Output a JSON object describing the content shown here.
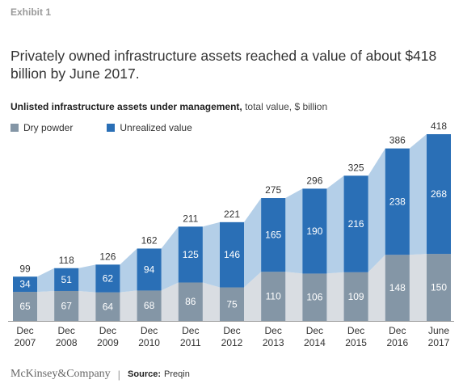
{
  "exhibit_label": "Exhibit 1",
  "headline": "Privately owned infrastructure assets reached a value of about $418 billion by June 2017.",
  "subtitle_bold": "Unlisted infrastructure assets under management,",
  "subtitle_rest": " total value, $ billion",
  "legend": {
    "dry_powder": "Dry powder",
    "unrealized": "Unrealized value"
  },
  "colors": {
    "dry_powder": "#8496a6",
    "unrealized": "#2a6fb6",
    "dry_band": "#d9dde2",
    "unrealized_band": "#b4cfe8"
  },
  "footer": {
    "brand": "McKinsey&Company",
    "separator": "|",
    "source_label": "Source:",
    "source": "Preqin"
  },
  "chart_data": {
    "type": "bar",
    "stacked": true,
    "categories": [
      [
        "Dec",
        "2007"
      ],
      [
        "Dec",
        "2008"
      ],
      [
        "Dec",
        "2009"
      ],
      [
        "Dec",
        "2010"
      ],
      [
        "Dec",
        "2011"
      ],
      [
        "Dec",
        "2012"
      ],
      [
        "Dec",
        "2013"
      ],
      [
        "Dec",
        "2014"
      ],
      [
        "Dec",
        "2015"
      ],
      [
        "Dec",
        "2016"
      ],
      [
        "June",
        "2017"
      ]
    ],
    "series": [
      {
        "name": "Dry powder",
        "values": [
          65,
          67,
          64,
          68,
          86,
          75,
          110,
          106,
          109,
          148,
          150
        ]
      },
      {
        "name": "Unrealized value",
        "values": [
          34,
          51,
          62,
          94,
          125,
          146,
          165,
          190,
          216,
          238,
          268
        ]
      }
    ],
    "totals": [
      99,
      118,
      126,
      162,
      211,
      221,
      275,
      296,
      325,
      386,
      418
    ],
    "ylim": [
      0,
      418
    ]
  }
}
